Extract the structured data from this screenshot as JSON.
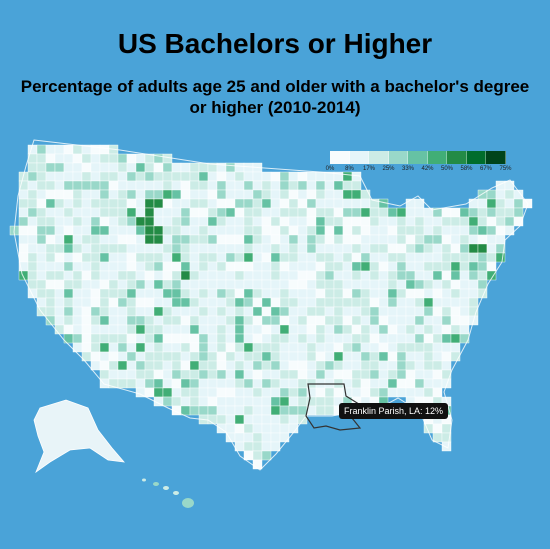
{
  "title": "US Bachelors or Higher",
  "subtitle": "Percentage of adults age 25 and older with a bachelor's degree or higher (2010-2014)",
  "legend": {
    "ticks": [
      "0%",
      "8%",
      "17%",
      "25%",
      "33%",
      "42%",
      "50%",
      "58%",
      "67%",
      "75%"
    ],
    "colors": [
      "#f7fcfd",
      "#e5f5f9",
      "#ccece6",
      "#99d8c9",
      "#66c2a4",
      "#41ae76",
      "#238b45",
      "#006d2c",
      "#00441b"
    ]
  },
  "colors": {
    "background": "#4aa3d8",
    "land": "#e8f4f8",
    "county_border": "#ffffff",
    "highlight_outline": "#333333"
  },
  "tooltip": {
    "text": "Franklin Parish, LA: 12%"
  }
}
